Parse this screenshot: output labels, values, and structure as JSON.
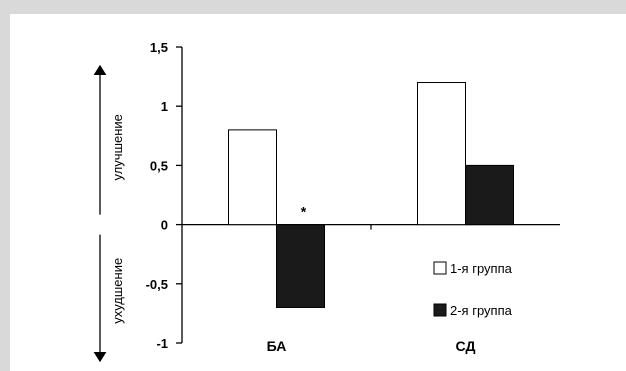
{
  "chart_data": {
    "type": "bar",
    "categories": [
      "БА",
      "СД"
    ],
    "series": [
      {
        "name": "1-я группа",
        "values": [
          0.8,
          1.2
        ],
        "color": "#ffffff",
        "stroke": "#000000"
      },
      {
        "name": "2-я группа",
        "values": [
          -0.7,
          0.5
        ],
        "color": "#1a1a1a",
        "stroke": "#000000"
      }
    ],
    "ylim": [
      -1,
      1.5
    ],
    "yticks": [
      1.5,
      1,
      0.5,
      0,
      -0.5,
      -1
    ],
    "ytick_labels": [
      "1,5",
      "1",
      "0,5",
      "0",
      "-0,5",
      "-1"
    ],
    "side_labels": {
      "up": "улучшение",
      "down": "ухудшение"
    },
    "annotations": [
      {
        "text": "*",
        "category": "БА",
        "series": "2-я группа"
      }
    ],
    "legend_position": "bottom-right",
    "grid": false
  }
}
